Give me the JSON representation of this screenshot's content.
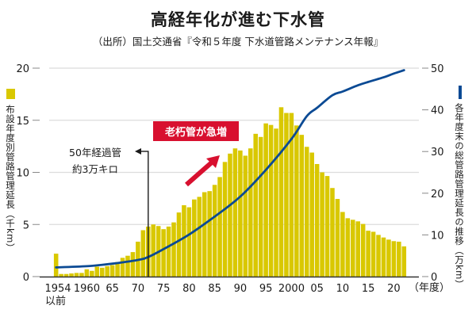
{
  "header": {
    "title": "高経年化が進む下水管",
    "subtitle": "（出所）国土交通省『令和５年度 下水道管路メンテナンス年報』"
  },
  "legend": {
    "left_label": "布設年度別管路管理延長（千km）",
    "right_label": "各年度末の総管路管理延長の推移（万km）",
    "bar_color": "#d9c800",
    "line_color": "#0b4a94"
  },
  "annotations": {
    "fifty_year": [
      "50年経過管",
      "約3万キロ"
    ],
    "surge": "老朽管が急増",
    "surge_color": "#d8102f"
  },
  "chart_data": {
    "type": "bar",
    "title": "高経年化が進む下水管",
    "xlabel": "（年度）",
    "ylabel": "布設年度別管路管理延長（千km）",
    "y2label": "各年度末の総管路管理延長の推移（万km）",
    "ylim": [
      0,
      20
    ],
    "y2lim": [
      0,
      50
    ],
    "yticks": [
      "0",
      "5",
      "10",
      "15",
      "20"
    ],
    "y2ticks": [
      "0",
      "10",
      "20",
      "30",
      "40",
      "50"
    ],
    "grid": true,
    "xtick_labels": [
      {
        "year": 1954,
        "label": "1954",
        "sub": "以前"
      },
      {
        "year": 1960,
        "label": "1960"
      },
      {
        "year": 1965,
        "label": "65"
      },
      {
        "year": 1970,
        "label": "70"
      },
      {
        "year": 1975,
        "label": "75"
      },
      {
        "year": 1980,
        "label": "80"
      },
      {
        "year": 1985,
        "label": "85"
      },
      {
        "year": 1990,
        "label": "90"
      },
      {
        "year": 1995,
        "label": "95"
      },
      {
        "year": 2000,
        "label": "2000"
      },
      {
        "year": 2005,
        "label": "05"
      },
      {
        "year": 2010,
        "label": "10"
      },
      {
        "year": 2015,
        "label": "15"
      },
      {
        "year": 2020,
        "label": "20"
      }
    ],
    "categories": [
      "1954以前",
      1955,
      1956,
      1957,
      1958,
      1959,
      1960,
      1961,
      1962,
      1963,
      1964,
      1965,
      1966,
      1967,
      1968,
      1969,
      1970,
      1971,
      1972,
      1973,
      1974,
      1975,
      1976,
      1977,
      1978,
      1979,
      1980,
      1981,
      1982,
      1983,
      1984,
      1985,
      1986,
      1987,
      1988,
      1989,
      1990,
      1991,
      1992,
      1993,
      1994,
      1995,
      1996,
      1997,
      1998,
      1999,
      2000,
      2001,
      2002,
      2003,
      2004,
      2005,
      2006,
      2007,
      2008,
      2009,
      2010,
      2011,
      2012,
      2013,
      2014,
      2015,
      2016,
      2017,
      2018,
      2019,
      2020,
      2021,
      2022
    ],
    "series": [
      {
        "name": "布設年度別管路管理延長（千km）",
        "type": "bar",
        "axis": "left",
        "values": [
          2.2,
          0.25,
          0.25,
          0.3,
          0.35,
          0.35,
          0.7,
          0.55,
          0.95,
          0.85,
          1.0,
          1.1,
          1.4,
          1.8,
          2.0,
          2.35,
          3.35,
          4.45,
          4.8,
          5.0,
          4.85,
          4.55,
          4.8,
          5.2,
          6.15,
          6.85,
          6.65,
          7.4,
          7.65,
          8.1,
          8.2,
          8.8,
          9.55,
          11.0,
          11.8,
          12.3,
          12.1,
          11.6,
          12.3,
          13.7,
          13.4,
          14.7,
          14.55,
          14.2,
          16.25,
          15.7,
          15.7,
          14.5,
          13.6,
          12.45,
          11.9,
          10.8,
          10.0,
          9.65,
          8.5,
          7.45,
          6.2,
          5.6,
          5.45,
          5.3,
          5.05,
          4.4,
          4.3,
          4.0,
          3.75,
          3.55,
          3.4,
          3.35,
          2.9
        ]
      },
      {
        "name": "各年度末の総管路管理延長の推移（万km）",
        "type": "line",
        "axis": "right",
        "x": [
          1954,
          1960,
          1965,
          1970,
          1972,
          1975,
          1980,
          1985,
          1990,
          1995,
          2000,
          2003,
          2005,
          2008,
          2010,
          2013,
          2015,
          2018,
          2020,
          2022
        ],
        "values": [
          2.2,
          2.5,
          3.1,
          4.0,
          4.7,
          6.6,
          10.1,
          14.4,
          19.2,
          25.6,
          33.0,
          38.5,
          40.5,
          43.5,
          44.4,
          45.9,
          46.7,
          47.8,
          48.7,
          49.5
        ]
      }
    ]
  }
}
